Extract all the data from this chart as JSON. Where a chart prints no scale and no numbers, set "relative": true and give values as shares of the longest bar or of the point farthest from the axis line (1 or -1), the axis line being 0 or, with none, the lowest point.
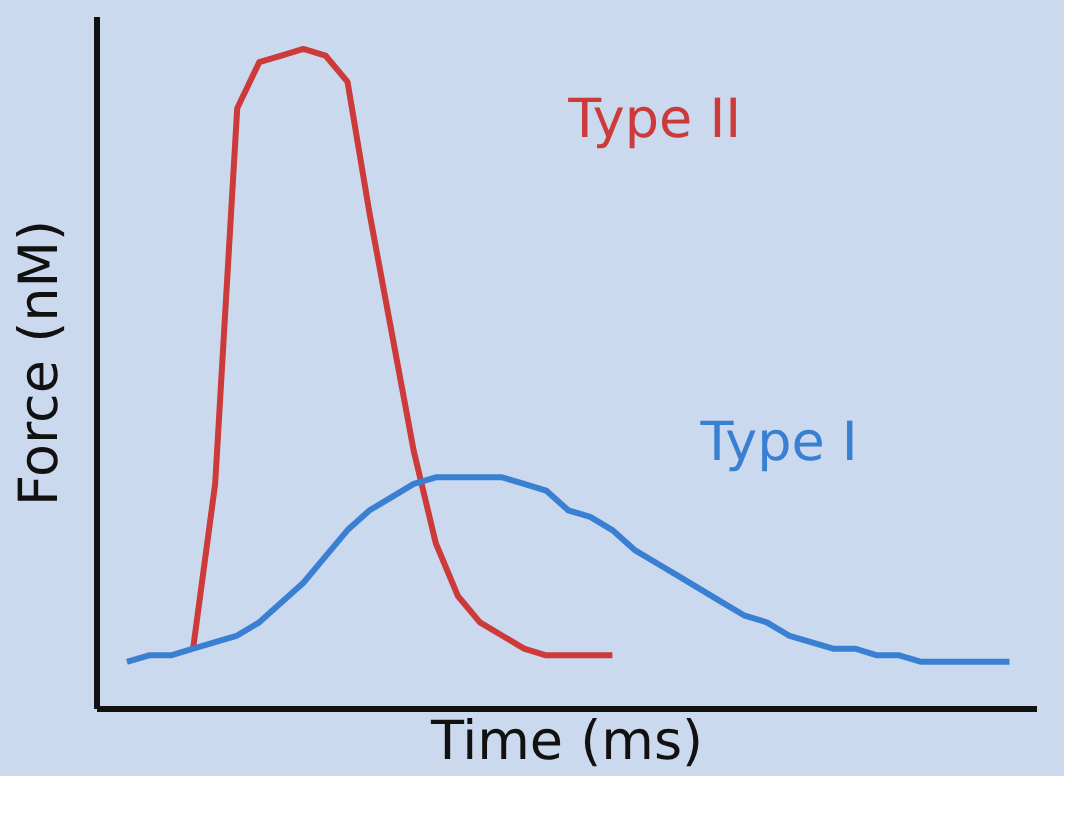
{
  "chart_data": {
    "type": "line",
    "relative": true,
    "xlabel": "Time (ms)",
    "ylabel": "Force (nM)",
    "tick_labels": false,
    "grid": false,
    "legend": false,
    "marker": "none",
    "line_style": "solid",
    "categories": [
      null,
      null,
      null,
      null,
      null,
      null,
      null,
      null,
      null,
      null,
      null,
      null,
      null,
      null,
      null,
      null,
      null,
      null,
      null,
      null,
      null,
      null,
      null,
      null,
      null,
      null,
      null,
      null,
      null,
      null,
      null,
      null,
      null,
      null,
      null,
      null,
      null,
      null,
      null,
      null,
      null
    ],
    "series": [
      {
        "name": "Type II",
        "color": "#cc3a3a",
        "values": [
          null,
          null,
          null,
          0.09,
          0.34,
          0.91,
          0.98,
          0.99,
          1.0,
          0.99,
          0.95,
          0.75,
          0.57,
          0.39,
          0.25,
          0.17,
          0.13,
          0.11,
          0.09,
          0.08,
          0.08,
          0.08,
          0.08,
          null,
          null,
          null,
          null,
          null,
          null,
          null,
          null,
          null,
          null,
          null,
          null,
          null,
          null,
          null,
          null,
          null,
          null
        ]
      },
      {
        "name": "Type I",
        "color": "#3a80d2",
        "values": [
          0.07,
          0.08,
          0.08,
          0.09,
          0.1,
          0.11,
          0.13,
          0.16,
          0.19,
          0.23,
          0.27,
          0.3,
          0.32,
          0.34,
          0.35,
          0.35,
          0.35,
          0.35,
          0.34,
          0.33,
          0.3,
          0.29,
          0.27,
          0.24,
          0.22,
          0.2,
          0.18,
          0.16,
          0.14,
          0.13,
          0.11,
          0.1,
          0.09,
          0.09,
          0.08,
          0.08,
          0.07,
          0.07,
          0.07,
          0.07,
          0.07
        ]
      }
    ]
  }
}
